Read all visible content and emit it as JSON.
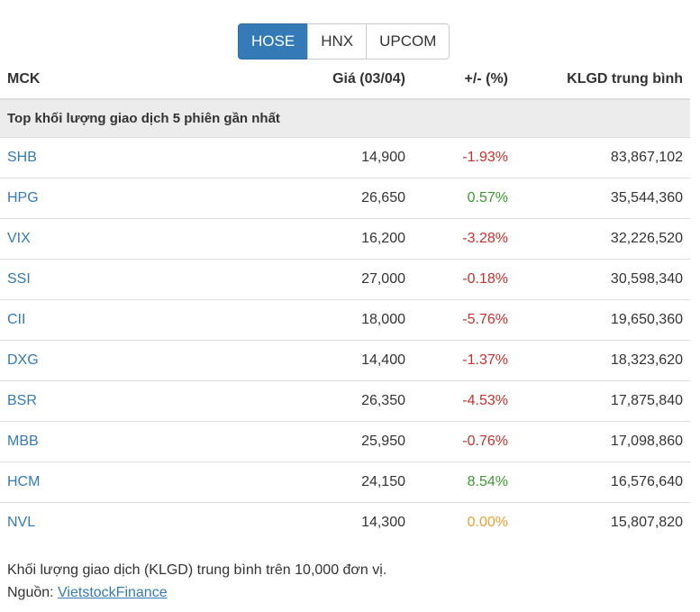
{
  "tabs": [
    {
      "label": "HOSE",
      "active": true
    },
    {
      "label": "HNX",
      "active": false
    },
    {
      "label": "UPCOM",
      "active": false
    }
  ],
  "table": {
    "columns": [
      "MCK",
      "Giá (03/04)",
      "+/- (%)",
      "KLGD trung bình"
    ],
    "section": "Top khối lượng giao dịch 5 phiên gần nhất",
    "rows": [
      {
        "symbol": "SHB",
        "price": "14,900",
        "change": "-1.93%",
        "volume": "83,867,102",
        "change_color": "#c9302c"
      },
      {
        "symbol": "HPG",
        "price": "26,650",
        "change": "0.57%",
        "volume": "35,544,360",
        "change_color": "#3c9a2f"
      },
      {
        "symbol": "VIX",
        "price": "16,200",
        "change": "-3.28%",
        "volume": "32,226,520",
        "change_color": "#c9302c"
      },
      {
        "symbol": "SSI",
        "price": "27,000",
        "change": "-0.18%",
        "volume": "30,598,340",
        "change_color": "#c9302c"
      },
      {
        "symbol": "CII",
        "price": "18,000",
        "change": "-5.76%",
        "volume": "19,650,360",
        "change_color": "#c9302c"
      },
      {
        "symbol": "DXG",
        "price": "14,400",
        "change": "-1.37%",
        "volume": "18,323,620",
        "change_color": "#c9302c"
      },
      {
        "symbol": "BSR",
        "price": "26,350",
        "change": "-4.53%",
        "volume": "17,875,840",
        "change_color": "#c9302c"
      },
      {
        "symbol": "MBB",
        "price": "25,950",
        "change": "-0.76%",
        "volume": "17,098,860",
        "change_color": "#c9302c"
      },
      {
        "symbol": "HCM",
        "price": "24,150",
        "change": "8.54%",
        "volume": "16,576,640",
        "change_color": "#3c9a2f"
      },
      {
        "symbol": "NVL",
        "price": "14,300",
        "change": "0.00%",
        "volume": "15,807,820",
        "change_color": "#f0a030"
      }
    ]
  },
  "footer": {
    "note": "Khối lượng giao dịch (KLGD) trung bình trên 10,000 đơn vị.",
    "source_label": "Nguồn:",
    "source_link": "VietstockFinance"
  }
}
